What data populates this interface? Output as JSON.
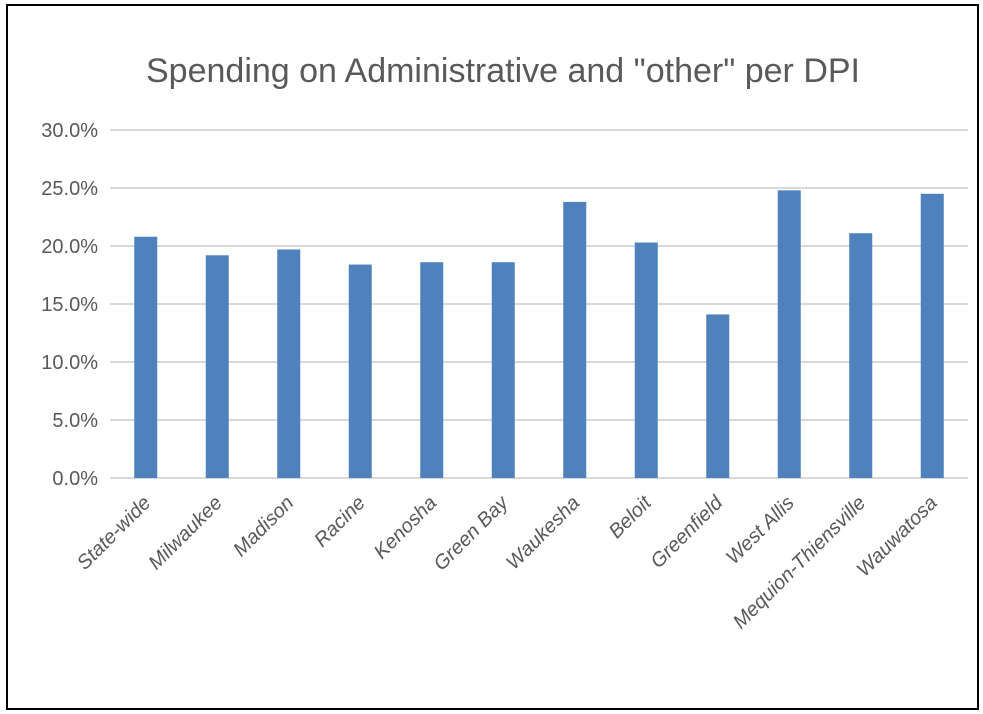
{
  "chart_data": {
    "type": "bar",
    "title": "Spending on Administrative and \"other\" per DPI",
    "xlabel": "",
    "ylabel": "",
    "categories": [
      "State-wide",
      "Milwaukee",
      "Madison",
      "Racine",
      "Kenosha",
      "Green Bay",
      "Waukesha",
      "Beloit",
      "Greenfield",
      "West Allis",
      "Mequion-Thiensville",
      "Wauwatosa"
    ],
    "values": [
      20.8,
      19.2,
      19.7,
      18.4,
      18.6,
      18.6,
      23.8,
      20.3,
      14.1,
      24.8,
      21.1,
      24.5
    ],
    "ylim": [
      0,
      30
    ],
    "yticks": [
      "0.0%",
      "5.0%",
      "10.0%",
      "15.0%",
      "20.0%",
      "25.0%",
      "30.0%"
    ],
    "grid": true,
    "legend": "none",
    "colors": {
      "bar": "#4f81bd",
      "grid": "#d9d9d9",
      "text": "#595959"
    }
  }
}
